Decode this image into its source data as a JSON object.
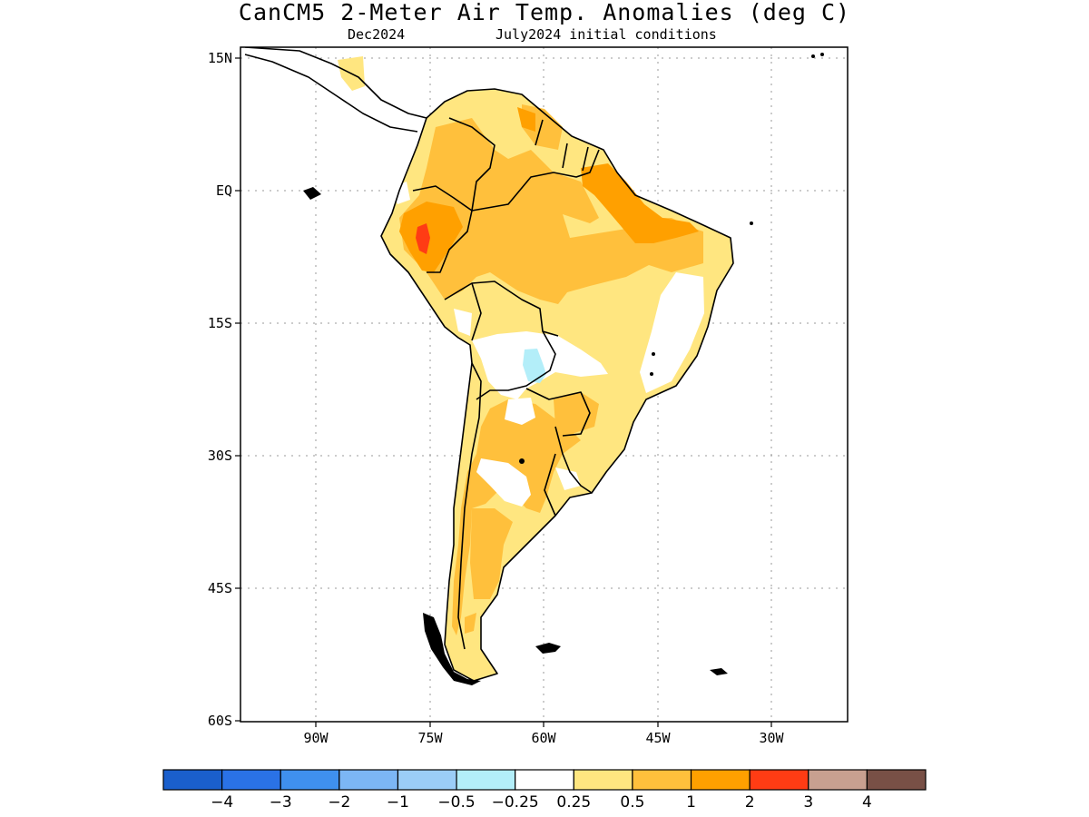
{
  "title": "CanCM5 2-Meter Air Temp. Anomalies (deg C)",
  "subtitle_left": "Dec2024",
  "subtitle_right": "July2024 initial conditions",
  "lat_labels": [
    "15N",
    "EQ",
    "15S",
    "30S",
    "45S",
    "60S"
  ],
  "lon_labels": [
    "90W",
    "75W",
    "60W",
    "45W",
    "30W"
  ],
  "colorbar": {
    "colors": [
      "#1a5fcc",
      "#2a72e6",
      "#3f90ee",
      "#7cb6f5",
      "#9bcdf7",
      "#b3eef9",
      "#ffffff",
      "#ffe680",
      "#ffc03c",
      "#ffa000",
      "#ff3c14",
      "#c8a090",
      "#785046"
    ],
    "labels": [
      "−4",
      "−3",
      "−2",
      "−1",
      "−0.5",
      "−0.25",
      "0.25",
      "0.5",
      "1",
      "2",
      "3",
      "4"
    ]
  },
  "map_colors": {
    "land_base": "#ffe680",
    "anom_1": "#ffc03c",
    "anom_2": "#ffa000",
    "anom_3": "#ff3c14",
    "neutral": "#ffffff",
    "neg_025": "#b3eef9",
    "coast": "#000000"
  }
}
